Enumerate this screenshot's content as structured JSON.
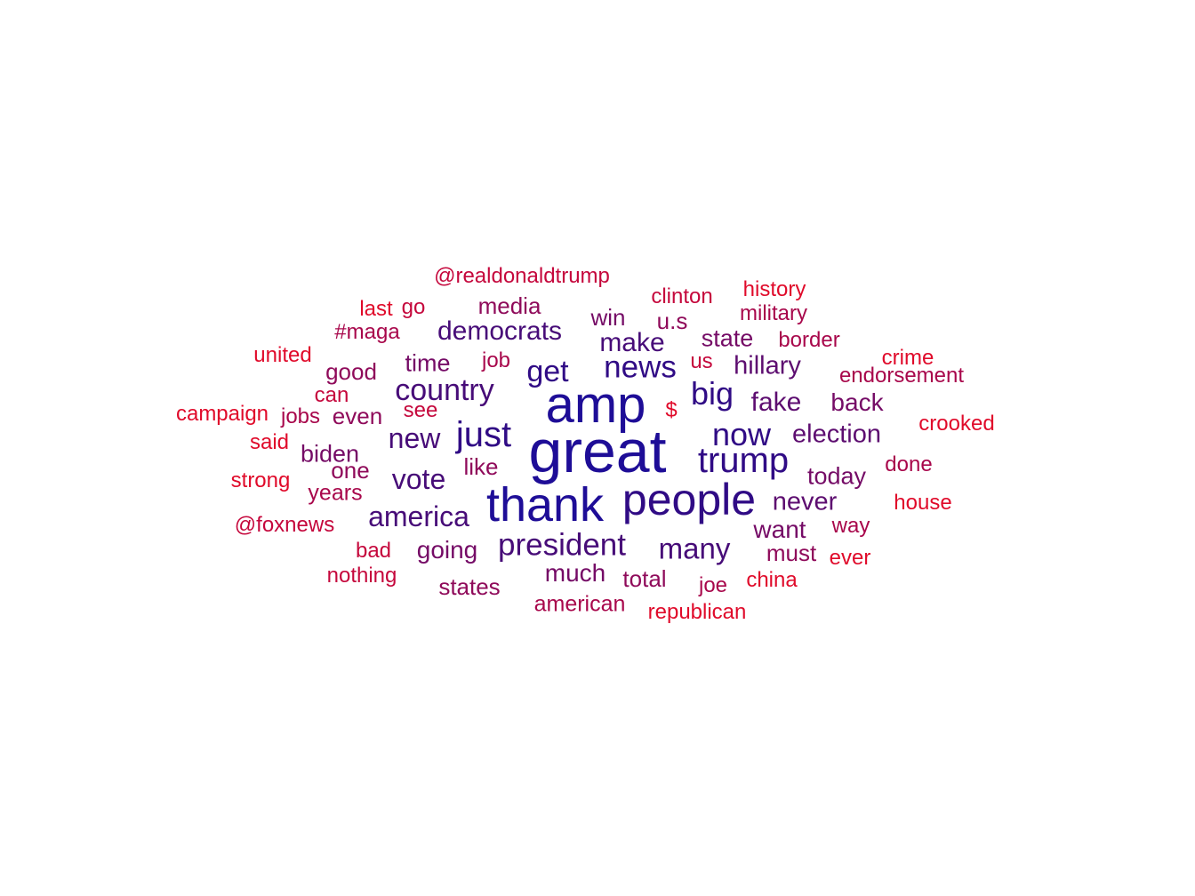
{
  "colors": {
    "c1": "#1e0d97",
    "c2": "#300b85",
    "c3": "#470c78",
    "c4": "#5d0d70",
    "c5": "#750b66",
    "c6": "#8f0a5a",
    "c7": "#a8074b",
    "c8": "#c5073c",
    "c9": "#e00a2a"
  },
  "words": [
    {
      "text": "great",
      "weight": 1.0,
      "color": "c1"
    },
    {
      "text": "amp",
      "weight": 0.92,
      "color": "c1"
    },
    {
      "text": "thank",
      "weight": 0.88,
      "color": "c1"
    },
    {
      "text": "people",
      "weight": 0.82,
      "color": "c2"
    },
    {
      "text": "just",
      "weight": 0.6,
      "color": "c2"
    },
    {
      "text": "trump",
      "weight": 0.6,
      "color": "c2"
    },
    {
      "text": "now",
      "weight": 0.56,
      "color": "c2"
    },
    {
      "text": "big",
      "weight": 0.56,
      "color": "c2"
    },
    {
      "text": "president",
      "weight": 0.5,
      "color": "c3"
    },
    {
      "text": "news",
      "weight": 0.5,
      "color": "c2"
    },
    {
      "text": "country",
      "weight": 0.48,
      "color": "c3"
    },
    {
      "text": "get",
      "weight": 0.48,
      "color": "c2"
    },
    {
      "text": "many",
      "weight": 0.47,
      "color": "c3"
    },
    {
      "text": "america",
      "weight": 0.45,
      "color": "c3"
    },
    {
      "text": "vote",
      "weight": 0.45,
      "color": "c3"
    },
    {
      "text": "new",
      "weight": 0.44,
      "color": "c3"
    },
    {
      "text": "democrats",
      "weight": 0.42,
      "color": "c3"
    },
    {
      "text": "fake",
      "weight": 0.42,
      "color": "c4"
    },
    {
      "text": "make",
      "weight": 0.41,
      "color": "c3"
    },
    {
      "text": "never",
      "weight": 0.4,
      "color": "c4"
    },
    {
      "text": "election",
      "weight": 0.4,
      "color": "c4"
    },
    {
      "text": "hillary",
      "weight": 0.39,
      "color": "c4"
    },
    {
      "text": "going",
      "weight": 0.37,
      "color": "c5"
    },
    {
      "text": "back",
      "weight": 0.37,
      "color": "c5"
    },
    {
      "text": "much",
      "weight": 0.37,
      "color": "c5"
    },
    {
      "text": "want",
      "weight": 0.36,
      "color": "c5"
    },
    {
      "text": "today",
      "weight": 0.35,
      "color": "c5"
    },
    {
      "text": "time",
      "weight": 0.35,
      "color": "c5"
    },
    {
      "text": "biden",
      "weight": 0.35,
      "color": "c5"
    },
    {
      "text": "state",
      "weight": 0.34,
      "color": "c5"
    },
    {
      "text": "media",
      "weight": 0.34,
      "color": "c6"
    },
    {
      "text": "states",
      "weight": 0.34,
      "color": "c6"
    },
    {
      "text": "total",
      "weight": 0.34,
      "color": "c6"
    },
    {
      "text": "win",
      "weight": 0.33,
      "color": "c5"
    },
    {
      "text": "good",
      "weight": 0.33,
      "color": "c6"
    },
    {
      "text": "like",
      "weight": 0.33,
      "color": "c6"
    },
    {
      "text": "u.s",
      "weight": 0.33,
      "color": "c6"
    },
    {
      "text": "one",
      "weight": 0.33,
      "color": "c6"
    },
    {
      "text": "even",
      "weight": 0.33,
      "color": "c6"
    },
    {
      "text": "must",
      "weight": 0.33,
      "color": "c6"
    },
    {
      "text": "years",
      "weight": 0.32,
      "color": "c7"
    },
    {
      "text": "american",
      "weight": 0.32,
      "color": "c7"
    },
    {
      "text": "done",
      "weight": 0.31,
      "color": "c7"
    },
    {
      "text": "job",
      "weight": 0.31,
      "color": "c7"
    },
    {
      "text": "joe",
      "weight": 0.31,
      "color": "c7"
    },
    {
      "text": "way",
      "weight": 0.31,
      "color": "c7"
    },
    {
      "text": "military",
      "weight": 0.3,
      "color": "c7"
    },
    {
      "text": "endorsement",
      "weight": 0.3,
      "color": "c7"
    },
    {
      "text": "jobs",
      "weight": 0.3,
      "color": "c7"
    },
    {
      "text": "#maga",
      "weight": 0.3,
      "color": "c7"
    },
    {
      "text": "border",
      "weight": 0.3,
      "color": "c7"
    },
    {
      "text": "bad",
      "weight": 0.3,
      "color": "c8"
    },
    {
      "text": "us",
      "weight": 0.3,
      "color": "c8"
    },
    {
      "text": "@realdonaldtrump",
      "weight": 0.3,
      "color": "c8"
    },
    {
      "text": "clinton",
      "weight": 0.29,
      "color": "c8"
    },
    {
      "text": "go",
      "weight": 0.29,
      "color": "c8"
    },
    {
      "text": "@foxnews",
      "weight": 0.29,
      "color": "c8"
    },
    {
      "text": "nothing",
      "weight": 0.29,
      "color": "c8"
    },
    {
      "text": "can",
      "weight": 0.29,
      "color": "c8"
    },
    {
      "text": "see",
      "weight": 0.29,
      "color": "c8"
    },
    {
      "text": "crooked",
      "weight": 0.29,
      "color": "c9"
    },
    {
      "text": "china",
      "weight": 0.29,
      "color": "c9"
    },
    {
      "text": "republican",
      "weight": 0.29,
      "color": "c9"
    },
    {
      "text": "ever",
      "weight": 0.29,
      "color": "c9"
    },
    {
      "text": "house",
      "weight": 0.29,
      "color": "c9"
    },
    {
      "text": "strong",
      "weight": 0.29,
      "color": "c9"
    },
    {
      "text": "campaign",
      "weight": 0.29,
      "color": "c9"
    },
    {
      "text": "united",
      "weight": 0.29,
      "color": "c9"
    },
    {
      "text": "said",
      "weight": 0.29,
      "color": "c9"
    },
    {
      "text": "crime",
      "weight": 0.29,
      "color": "c9"
    },
    {
      "text": "history",
      "weight": 0.29,
      "color": "c9"
    },
    {
      "text": "last",
      "weight": 0.29,
      "color": "c9"
    },
    {
      "text": "$",
      "weight": 0.29,
      "color": "c9"
    }
  ]
}
